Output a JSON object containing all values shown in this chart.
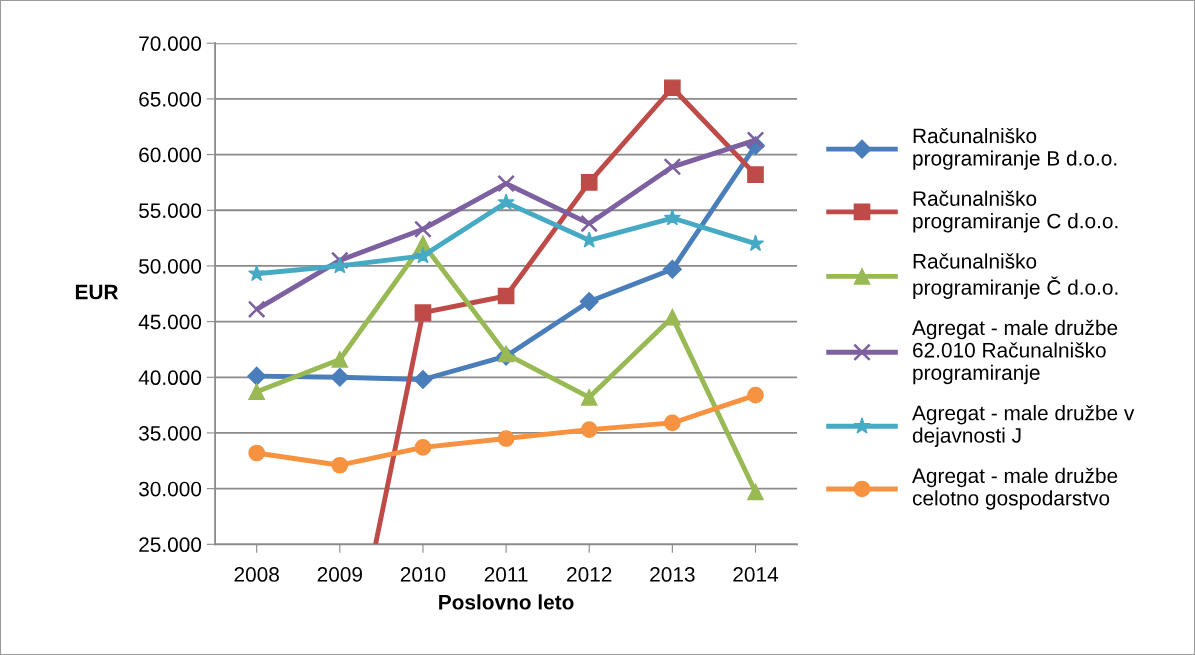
{
  "chart_data": {
    "type": "line",
    "xlabel": "Poslovno leto",
    "ylabel": "EUR",
    "x": [
      2008,
      2009,
      2010,
      2011,
      2012,
      2013,
      2014
    ],
    "xlim": [
      2007.5,
      2014.5
    ],
    "xticks": [
      2008,
      2009,
      2010,
      2011,
      2012,
      2013,
      2014
    ],
    "ylim": [
      25000,
      70000
    ],
    "yticks": [
      {
        "value": 25000,
        "label": "25.000"
      },
      {
        "value": 30000,
        "label": "30.000"
      },
      {
        "value": 35000,
        "label": "35.000"
      },
      {
        "value": 40000,
        "label": "40.000"
      },
      {
        "value": 45000,
        "label": "45.000"
      },
      {
        "value": 50000,
        "label": "50.000"
      },
      {
        "value": 55000,
        "label": "55.000"
      },
      {
        "value": 60000,
        "label": "60.000"
      },
      {
        "value": 65000,
        "label": "65.000"
      },
      {
        "value": 70000,
        "label": "70.000"
      }
    ],
    "grid": "y",
    "legend": "right",
    "line_style": "solid",
    "series": [
      {
        "name": "Računalniško\nprogramiranje B d.o.o.",
        "color": "#4a7ebb",
        "marker": "diamond",
        "values": [
          40100,
          40000,
          39800,
          41900,
          46800,
          49700,
          60800
        ]
      },
      {
        "name": "Računalniško\nprogramiranje C d.o.o.",
        "color": "#be4b48",
        "marker": "square",
        "x": [
          2009.43,
          2010,
          2011,
          2012,
          2013,
          2014
        ],
        "values": [
          25000,
          45800,
          47300,
          57500,
          66000,
          58200
        ]
      },
      {
        "name": "Računalniško\nprogramiranje Č d.o.o.",
        "color": "#98b954",
        "marker": "triangle",
        "values": [
          38700,
          41600,
          52000,
          42100,
          38200,
          45400,
          29700
        ]
      },
      {
        "name": "Agregat - male družbe\n62.010 Računalniško\nprogramiranje",
        "color": "#7d60a0",
        "marker": "cross",
        "values": [
          46100,
          50500,
          53300,
          57400,
          53800,
          58900,
          61300
        ]
      },
      {
        "name": "Agregat - male družbe v\ndejavnosti J",
        "color": "#46aac5",
        "marker": "star",
        "values": [
          49300,
          50000,
          50900,
          55700,
          52300,
          54300,
          52000
        ]
      },
      {
        "name": "Agregat - male družbe\ncelotno gospodarstvo",
        "color": "#f69240",
        "marker": "circle",
        "values": [
          33200,
          32100,
          33700,
          34500,
          35300,
          35900,
          38400
        ]
      }
    ]
  }
}
